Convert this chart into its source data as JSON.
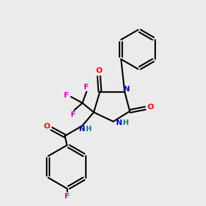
{
  "bg_color": "#ebebeb",
  "line_color": "#000000",
  "bond_lw": 1.6,
  "colors": {
    "N": "#0000cc",
    "O": "#ff0000",
    "F": "#cc00cc",
    "H": "#008080"
  },
  "figsize": [
    3.0,
    3.0
  ],
  "dpi": 100
}
